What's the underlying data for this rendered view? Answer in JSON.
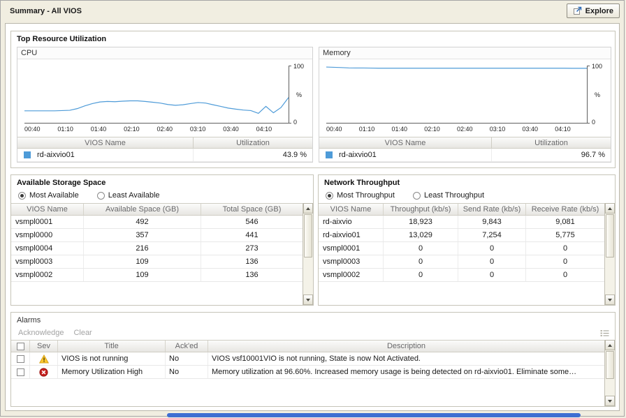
{
  "header": {
    "title": "Summary - All VIOS",
    "explore_label": "Explore"
  },
  "colors": {
    "chart_line": "#4e9bd8",
    "warning": "#fdc72f",
    "error": "#c6201e",
    "background": "#f1eee1",
    "selection_blue": "#3d6ed2"
  },
  "icons": {
    "explore": "open-external-arrow",
    "warning": "yellow-triangle-exclamation",
    "fatal": "red-circle-x",
    "toolbar_grid": "list-lines",
    "scroll_up": "triangle-up",
    "scroll_down": "triangle-down"
  },
  "top_resource": {
    "title": "Top Resource Utilization",
    "cpu": {
      "title": "CPU",
      "legend_color": "#4e9bd8",
      "table": {
        "headers": [
          "VIOS Name",
          "Utilization"
        ],
        "rows": [
          {
            "name": "rd-aixvio01",
            "value": "43.9 %"
          }
        ]
      }
    },
    "memory": {
      "title": "Memory",
      "legend_color": "#4e9bd8",
      "table": {
        "headers": [
          "VIOS Name",
          "Utilization"
        ],
        "rows": [
          {
            "name": "rd-aixvio01",
            "value": "96.7 %"
          }
        ]
      }
    }
  },
  "chart_data": [
    {
      "type": "line",
      "title": "CPU",
      "series_name": "rd-aixvio01",
      "x_ticks": [
        "00:40",
        "01:10",
        "01:40",
        "02:10",
        "02:40",
        "03:10",
        "03:40",
        "04:10"
      ],
      "values": [
        20,
        20,
        20,
        20,
        20,
        20.5,
        21,
        24,
        29,
        33,
        36,
        37,
        36.5,
        37.5,
        38,
        38,
        37,
        35.5,
        34,
        31.5,
        30,
        31,
        33,
        35,
        34,
        31,
        28,
        25,
        23,
        21.5,
        20.5,
        15.5,
        28,
        16.5,
        26,
        44
      ],
      "ylim": [
        0,
        100
      ],
      "ylabel": "%",
      "color": "#4e9bd8"
    },
    {
      "type": "line",
      "title": "Memory",
      "series_name": "rd-aixvio01",
      "x_ticks": [
        "00:40",
        "01:10",
        "01:40",
        "02:10",
        "02:40",
        "03:10",
        "03:40",
        "04:10"
      ],
      "values": [
        99,
        98.5,
        98,
        97.5,
        97.3,
        97.2,
        97.1,
        97,
        97,
        97,
        97,
        97,
        97,
        97,
        97,
        97,
        97,
        97,
        97,
        97,
        97,
        97,
        97,
        97,
        97,
        97,
        97,
        97,
        97,
        97,
        97,
        97,
        96.9,
        96.8,
        96.7,
        96.7
      ],
      "ylim": [
        0,
        100
      ],
      "ylabel": "%",
      "color": "#4e9bd8"
    }
  ],
  "storage": {
    "title": "Available Storage Space",
    "radios": [
      {
        "label": "Most Available",
        "selected": true
      },
      {
        "label": "Least Available",
        "selected": false
      }
    ],
    "headers": [
      "VIOS Name",
      "Available Space (GB)",
      "Total Space (GB)"
    ],
    "rows": [
      [
        "vsmpl0001",
        "492",
        "546"
      ],
      [
        "vsmpl0000",
        "357",
        "441"
      ],
      [
        "vsmpl0004",
        "216",
        "273"
      ],
      [
        "vsmpl0003",
        "109",
        "136"
      ],
      [
        "vsmpl0002",
        "109",
        "136"
      ]
    ]
  },
  "network": {
    "title": "Network Throughput",
    "radios": [
      {
        "label": "Most Throughput",
        "selected": true
      },
      {
        "label": "Least Throughput",
        "selected": false
      }
    ],
    "headers": [
      "VIOS Name",
      "Throughput (kb/s)",
      "Send Rate (kb/s)",
      "Receive Rate (kb/s)"
    ],
    "rows": [
      [
        "rd-aixvio",
        "18,923",
        "9,843",
        "9,081"
      ],
      [
        "rd-aixvio01",
        "13,029",
        "7,254",
        "5,775"
      ],
      [
        "vsmpl0001",
        "0",
        "0",
        "0"
      ],
      [
        "vsmpl0003",
        "0",
        "0",
        "0"
      ],
      [
        "vsmpl0002",
        "0",
        "0",
        "0"
      ]
    ]
  },
  "alarms": {
    "title": "Alarms",
    "actions": [
      "Acknowledge",
      "Clear"
    ],
    "headers": [
      "",
      "Sev",
      "Title",
      "Ack'ed",
      "Description"
    ],
    "rows": [
      {
        "severity": "warning",
        "title": "VIOS is not running",
        "acked": "No",
        "description": "VIOS vsf10001VIO is not running, State is now Not Activated."
      },
      {
        "severity": "fatal",
        "title": "Memory Utilization High",
        "acked": "No",
        "description": "Memory utilization at 96.60%. Increased memory usage is being detected on rd-aixvio01. Eliminate some…"
      }
    ]
  }
}
